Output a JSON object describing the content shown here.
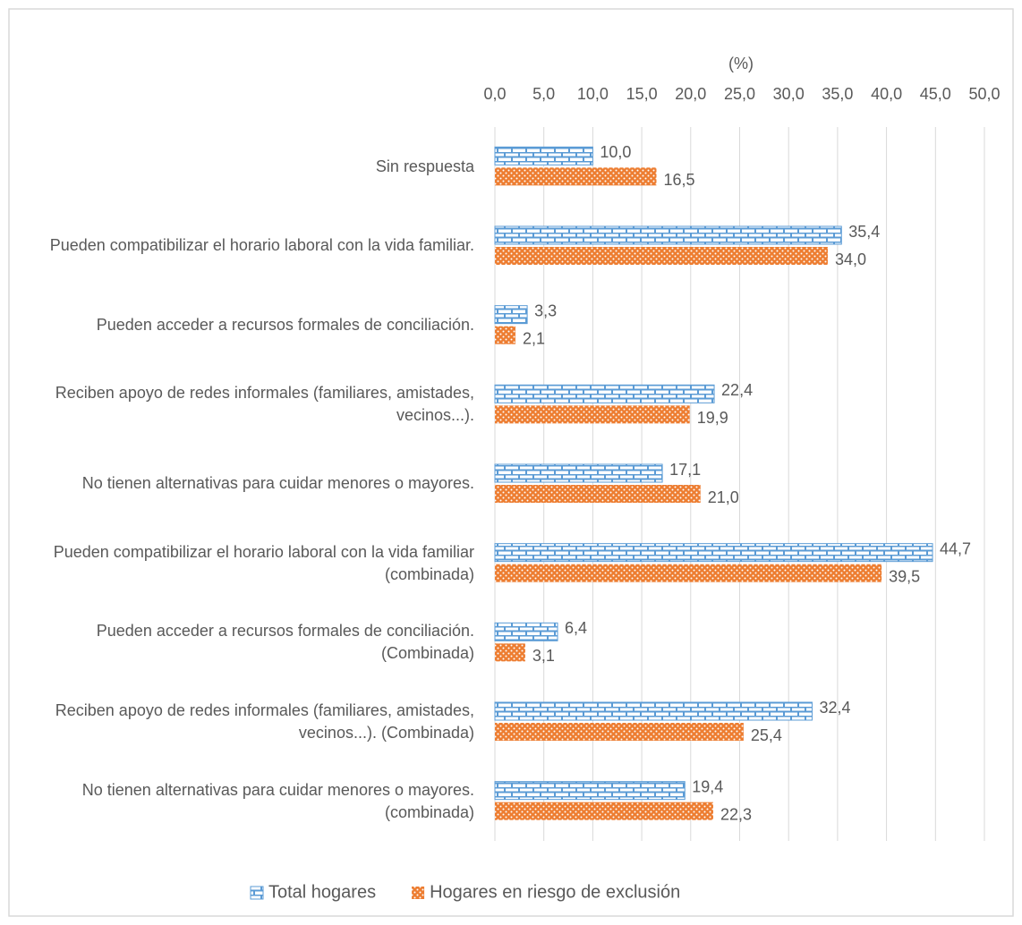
{
  "chart_data": {
    "type": "bar",
    "orientation": "horizontal",
    "axis_label": "(%)",
    "categories": [
      "Sin respuesta",
      "Pueden compatibilizar el horario laboral con la vida familiar.",
      "Pueden acceder a recursos formales de conciliación.",
      "Reciben apoyo de redes informales (familiares, amistades, vecinos...).",
      "No tienen alternativas para cuidar menores o mayores.",
      "Pueden compatibilizar el horario laboral con la vida familiar (combinada)",
      "Pueden acceder a recursos formales de conciliación. (Combinada)",
      "Reciben apoyo de redes informales (familiares, amistades, vecinos...). (Combinada)",
      "No tienen alternativas para cuidar menores o mayores. (combinada)"
    ],
    "series": [
      {
        "name": "Total hogares",
        "color": "#5b9bd5",
        "values": [
          10.0,
          35.4,
          3.3,
          22.4,
          17.1,
          44.7,
          6.4,
          32.4,
          19.4
        ],
        "value_labels": [
          "10,0",
          "35,4",
          "3,3",
          "22,4",
          "17,1",
          "44,7",
          "6,4",
          "32,4",
          "19,4"
        ]
      },
      {
        "name": "Hogares en riesgo de exclusión",
        "color": "#ed7d31",
        "values": [
          16.5,
          34.0,
          2.1,
          19.9,
          21.0,
          39.5,
          3.1,
          25.4,
          22.3
        ],
        "value_labels": [
          "16,5",
          "34,0",
          "2,1",
          "19,9",
          "21,0",
          "39,5",
          "3,1",
          "25,4",
          "22,3"
        ]
      }
    ],
    "xlim": [
      0,
      50
    ],
    "xticks": [
      {
        "value": 0,
        "label": "0,0"
      },
      {
        "value": 5,
        "label": "5,0"
      },
      {
        "value": 10,
        "label": "10,0"
      },
      {
        "value": 15,
        "label": "15,0"
      },
      {
        "value": 20,
        "label": "20,0"
      },
      {
        "value": 25,
        "label": "25,0"
      },
      {
        "value": 30,
        "label": "30,0"
      },
      {
        "value": 35,
        "label": "35,0"
      },
      {
        "value": 40,
        "label": "40,0"
      },
      {
        "value": 45,
        "label": "45,0"
      },
      {
        "value": 50,
        "label": "50,0"
      }
    ],
    "grid": true,
    "legend": "bottom"
  }
}
